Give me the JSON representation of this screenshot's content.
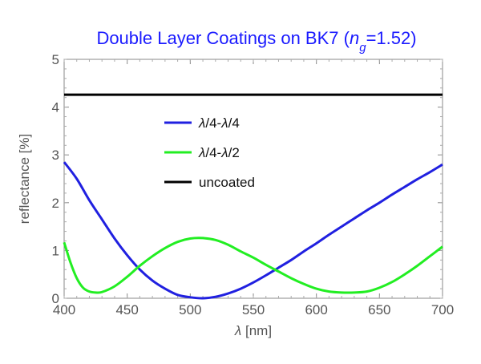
{
  "chart_data": {
    "type": "line",
    "title_parts": [
      "Double Layer Coatings on BK7 (",
      "n",
      "g",
      "=1.52)"
    ],
    "xlabel_parts": [
      "λ",
      " [nm]"
    ],
    "ylabel": "reflectance [%]",
    "xlim": [
      400,
      700
    ],
    "ylim": [
      0,
      5
    ],
    "xticks": [
      400,
      450,
      500,
      550,
      600,
      650,
      700
    ],
    "yticks": [
      0,
      1,
      2,
      3,
      4,
      5
    ],
    "legend_position": "upper-center",
    "series": [
      {
        "name": "λ/4-λ/4",
        "legend_parts": [
          "λ",
          "/4-",
          "λ",
          "/4"
        ],
        "color": "#2020e0",
        "x": [
          400,
          410,
          420,
          430,
          440,
          450,
          460,
          470,
          480,
          490,
          500,
          510,
          520,
          530,
          540,
          550,
          560,
          570,
          580,
          590,
          600,
          610,
          620,
          630,
          640,
          650,
          660,
          670,
          680,
          690,
          700
        ],
        "y": [
          2.85,
          2.5,
          2.05,
          1.65,
          1.25,
          0.9,
          0.6,
          0.37,
          0.2,
          0.07,
          0.02,
          0.0,
          0.03,
          0.1,
          0.2,
          0.33,
          0.48,
          0.64,
          0.8,
          0.98,
          1.15,
          1.33,
          1.5,
          1.67,
          1.84,
          2.0,
          2.17,
          2.33,
          2.49,
          2.64,
          2.8
        ]
      },
      {
        "name": "λ/4-λ/2",
        "legend_parts": [
          "λ",
          "/4-",
          "λ",
          "/2"
        ],
        "color": "#22ee22",
        "x": [
          400,
          405,
          410,
          415,
          420,
          425,
          430,
          440,
          450,
          460,
          470,
          480,
          490,
          500,
          510,
          520,
          530,
          540,
          550,
          560,
          570,
          580,
          590,
          600,
          610,
          620,
          630,
          640,
          650,
          660,
          670,
          680,
          690,
          700
        ],
        "y": [
          1.17,
          0.75,
          0.42,
          0.22,
          0.14,
          0.12,
          0.13,
          0.25,
          0.45,
          0.68,
          0.88,
          1.05,
          1.18,
          1.25,
          1.26,
          1.22,
          1.12,
          0.98,
          0.85,
          0.7,
          0.56,
          0.42,
          0.3,
          0.2,
          0.14,
          0.12,
          0.12,
          0.14,
          0.22,
          0.34,
          0.5,
          0.68,
          0.88,
          1.08
        ]
      },
      {
        "name": "uncoated",
        "legend_parts": [
          "uncoated"
        ],
        "color": "#000000",
        "x": [
          400,
          700
        ],
        "y": [
          4.26,
          4.26
        ]
      }
    ]
  }
}
